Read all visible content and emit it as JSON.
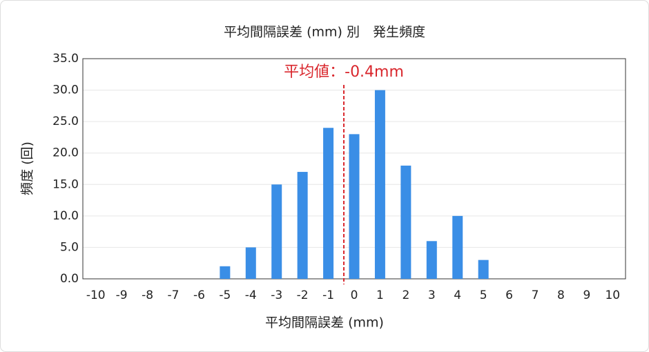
{
  "chart_data": {
    "type": "bar",
    "title": "平均間隔誤差 (mm) 別　発生頻度",
    "x_label": "平均間隔誤差 (mm)",
    "y_label": "頻度 (回)",
    "x": [
      -10,
      -9,
      -8,
      -7,
      -6,
      -5,
      -4,
      -3,
      -2,
      -1,
      0,
      1,
      2,
      3,
      4,
      5,
      6,
      7,
      8,
      9,
      10
    ],
    "values": [
      0,
      0,
      0,
      0,
      0,
      2,
      5,
      15,
      17,
      24,
      23,
      30,
      18,
      6,
      10,
      3,
      0,
      0,
      0,
      0,
      0
    ],
    "color": "#3a8ee6",
    "xlim": [
      -10.5,
      10.5
    ],
    "ylim": [
      0,
      35
    ],
    "yticks": [
      {
        "value": 0,
        "label": "0.0"
      },
      {
        "value": 5,
        "label": "5.0"
      },
      {
        "value": 10,
        "label": "10.0"
      },
      {
        "value": 15,
        "label": "15.0"
      },
      {
        "value": 20,
        "label": "20.0"
      },
      {
        "value": 25,
        "label": "25.0"
      },
      {
        "value": 30,
        "label": "30.0"
      },
      {
        "value": 35,
        "label": "35.0"
      }
    ],
    "grid": true,
    "annotations": [
      {
        "text": "平均値：-0.4mm",
        "x": -0.4,
        "color": "#d9262c"
      }
    ]
  }
}
